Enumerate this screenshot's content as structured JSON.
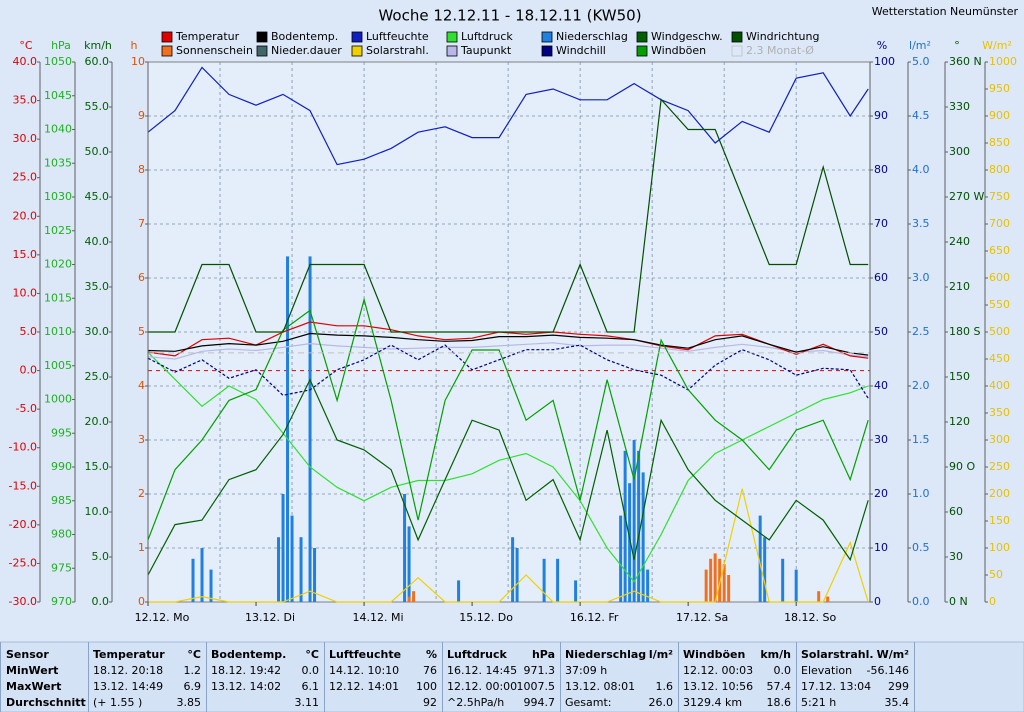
{
  "chart_data": {
    "type": "line",
    "title": "Woche 12.12.11 - 18.12.11 (KW50)",
    "station": "Wetterstation Neumünster",
    "xlim": [
      0,
      160.4
    ],
    "xticks": [
      {
        "value": 0,
        "label": "12.12. Mo"
      },
      {
        "value": 24,
        "label": "13.12. Di"
      },
      {
        "value": 48,
        "label": "14.12. Mi"
      },
      {
        "value": 72,
        "label": "15.12. Do"
      },
      {
        "value": 96,
        "label": "16.12. Fr"
      },
      {
        "value": 120,
        "label": "17.12. Sa"
      },
      {
        "value": 144,
        "label": "18.12. So"
      }
    ],
    "xgrid": [
      16,
      32,
      48,
      64,
      80,
      96,
      112,
      128,
      144
    ],
    "x": [
      0,
      6,
      12,
      18,
      24,
      30,
      36,
      42,
      48,
      54,
      60,
      66,
      72,
      78,
      84,
      90,
      96,
      102,
      108,
      114,
      120,
      126,
      132,
      138,
      144,
      150,
      156,
      160
    ],
    "axes": [
      {
        "unit": "°C",
        "side": "left",
        "color": "#e00000",
        "lim": [
          -30,
          40
        ],
        "reference": 0,
        "ticks": [
          {
            "value": 40,
            "label": "40.0"
          },
          {
            "value": 35,
            "label": "35.0"
          },
          {
            "value": 30,
            "label": "30.0"
          },
          {
            "value": 25,
            "label": "25.0"
          },
          {
            "value": 20,
            "label": "20.0"
          },
          {
            "value": 15,
            "label": "15.0"
          },
          {
            "value": 10,
            "label": "10.0"
          },
          {
            "value": 5,
            "label": "5.0"
          },
          {
            "value": 0,
            "label": "0.0"
          },
          {
            "value": -5,
            "label": "-5.0"
          },
          {
            "value": -10,
            "label": "-10.0"
          },
          {
            "value": -15,
            "label": "-15.0"
          },
          {
            "value": -20,
            "label": "-20.0"
          },
          {
            "value": -25,
            "label": "-25.0"
          },
          {
            "value": -30,
            "label": "-30.0"
          }
        ]
      },
      {
        "unit": "hPa",
        "side": "left",
        "color": "#20b020",
        "lim": [
          970,
          1050
        ],
        "ticks": [
          1050,
          1045,
          1040,
          1035,
          1030,
          1025,
          1020,
          1015,
          1010,
          1005,
          1000,
          995,
          990,
          985,
          980,
          975,
          970
        ]
      },
      {
        "unit": "km/h",
        "side": "left",
        "color": "#006000",
        "lim": [
          0,
          60
        ],
        "ticks": [
          {
            "value": 60,
            "label": "60.0"
          },
          {
            "value": 55,
            "label": "55.0"
          },
          {
            "value": 50,
            "label": "50.0"
          },
          {
            "value": 45,
            "label": "45.0"
          },
          {
            "value": 40,
            "label": "40.0"
          },
          {
            "value": 35,
            "label": "35.0"
          },
          {
            "value": 30,
            "label": "30.0"
          },
          {
            "value": 25,
            "label": "25.0"
          },
          {
            "value": 20,
            "label": "20.0"
          },
          {
            "value": 15,
            "label": "15.0"
          },
          {
            "value": 10,
            "label": "10.0"
          },
          {
            "value": 5,
            "label": "5.0"
          },
          {
            "value": 0,
            "label": "0.0"
          }
        ]
      },
      {
        "unit": "h",
        "side": "left",
        "color": "#e05000",
        "lim": [
          0,
          10
        ],
        "grid": true,
        "ticks": [
          10,
          9,
          8,
          7,
          6,
          5,
          4,
          3,
          2,
          1,
          0
        ]
      },
      {
        "unit": "%",
        "side": "right",
        "color": "#000090",
        "lim": [
          0,
          100
        ],
        "ticks": [
          100,
          90,
          80,
          70,
          60,
          50,
          40,
          30,
          20,
          10,
          0
        ]
      },
      {
        "unit": "l/m²",
        "side": "right",
        "color": "#1e70d0",
        "lim": [
          0,
          5
        ],
        "ticks": [
          {
            "value": 5,
            "label": "5.0"
          },
          {
            "value": 4.5,
            "label": "4.5"
          },
          {
            "value": 4,
            "label": "4.0"
          },
          {
            "value": 3.5,
            "label": "3.5"
          },
          {
            "value": 3,
            "label": "3.0"
          },
          {
            "value": 2.5,
            "label": "2.5"
          },
          {
            "value": 2,
            "label": "2.0"
          },
          {
            "value": 1.5,
            "label": "1.5"
          },
          {
            "value": 1,
            "label": "1.0"
          },
          {
            "value": 0.5,
            "label": "0.5"
          },
          {
            "value": 0,
            "label": "0.0"
          }
        ]
      },
      {
        "unit": "°",
        "side": "right",
        "color": "#005000",
        "lim": [
          0,
          360
        ],
        "ticks": [
          {
            "value": 360,
            "label": "360 N"
          },
          330,
          300,
          {
            "value": 270,
            "label": "270 W"
          },
          240,
          210,
          {
            "value": 180,
            "label": "180 S"
          },
          150,
          120,
          {
            "value": 90,
            "label": "90 O"
          },
          60,
          30,
          {
            "value": 0,
            "label": "0 N"
          }
        ]
      },
      {
        "unit": "W/m²",
        "side": "right",
        "color": "#e8c000",
        "lim": [
          0,
          1000
        ],
        "ticks": [
          1000,
          950,
          900,
          850,
          800,
          750,
          700,
          650,
          600,
          550,
          500,
          450,
          400,
          350,
          300,
          250,
          200,
          150,
          100,
          50,
          0
        ]
      }
    ],
    "series": [
      {
        "name": "Temperatur",
        "color": "#e00000",
        "axis": 0,
        "values": [
          2.4,
          1.9,
          4.0,
          4.2,
          3.3,
          5.0,
          6.3,
          5.8,
          5.8,
          5.3,
          4.5,
          4.0,
          4.2,
          5.0,
          4.7,
          5.0,
          4.7,
          4.5,
          4.0,
          3.2,
          2.7,
          4.5,
          4.7,
          3.4,
          2.1,
          3.4,
          1.9,
          1.6
        ]
      },
      {
        "name": "Sonnenschein",
        "color": "#f07020",
        "axis": 3,
        "style": "bar",
        "x": [
          58,
          59,
          124,
          125,
          126,
          127,
          128,
          129,
          149,
          151
        ],
        "values": [
          0.1,
          0.2,
          0.6,
          0.8,
          0.9,
          0.8,
          0.7,
          0.5,
          0.2,
          0.1
        ]
      },
      {
        "name": "Bodentemp.",
        "color": "#000000",
        "axis": 0,
        "values": [
          2.6,
          2.5,
          3.2,
          3.5,
          3.3,
          3.8,
          4.8,
          4.6,
          4.5,
          4.3,
          4.0,
          3.8,
          3.9,
          4.4,
          4.4,
          4.6,
          4.3,
          4.2,
          4.0,
          3.3,
          2.9,
          4.0,
          4.5,
          3.4,
          2.4,
          3.1,
          2.3,
          2.0
        ]
      },
      {
        "name": "Nieder.dauer",
        "color": "#406868",
        "axis": 3
      },
      {
        "name": "Luftfeuchte",
        "color": "#1020c0",
        "axis": 4,
        "values": [
          87,
          91,
          99,
          94,
          92,
          94,
          91,
          81,
          82,
          84,
          87,
          88,
          86,
          86,
          94,
          95,
          93,
          93,
          96,
          93,
          91,
          85,
          89,
          87,
          97,
          98,
          90,
          95
        ]
      },
      {
        "name": "Solarstrahl.",
        "color": "#f0d000",
        "axis": 7,
        "values": [
          0,
          0,
          10,
          0,
          0,
          0,
          20,
          0,
          0,
          0,
          45,
          0,
          0,
          0,
          50,
          0,
          0,
          0,
          20,
          0,
          0,
          0,
          210,
          0,
          0,
          0,
          110,
          0
        ]
      },
      {
        "name": "Luftdruck",
        "color": "#30e030",
        "axis": 1,
        "values": [
          1007,
          1003,
          999,
          1002,
          1000,
          995,
          990,
          987,
          985,
          987,
          988,
          988,
          989,
          991,
          992,
          990,
          985,
          978,
          973,
          980,
          988,
          992,
          994,
          996,
          998,
          1000,
          1001,
          1002
        ]
      },
      {
        "name": "Taupunkt",
        "color": "#b8b8e8",
        "axis": 0,
        "values": [
          1.8,
          1.5,
          2.5,
          2.8,
          2.6,
          3.0,
          3.5,
          3.2,
          3.0,
          2.8,
          2.9,
          3.0,
          3.0,
          3.2,
          3.4,
          3.6,
          3.2,
          3.3,
          3.3,
          2.9,
          2.5,
          3.0,
          3.4,
          3.0,
          2.4,
          2.6,
          2.0,
          1.8
        ]
      },
      {
        "name": "Niederschlag",
        "color": "#2080e0",
        "axis": 5,
        "style": "bar",
        "x": [
          10,
          12,
          14,
          29,
          30,
          31,
          32,
          34,
          36,
          37,
          57,
          58,
          69,
          81,
          82,
          88,
          91,
          95,
          105,
          106,
          107,
          108,
          109,
          110,
          111,
          136,
          137,
          141,
          144
        ],
        "values": [
          0.4,
          0.5,
          0.3,
          0.6,
          1.0,
          3.2,
          0.8,
          0.6,
          3.2,
          0.5,
          1.0,
          0.7,
          0.2,
          0.6,
          0.5,
          0.4,
          0.4,
          0.2,
          0.8,
          1.4,
          1.1,
          1.5,
          1.4,
          1.2,
          0.3,
          0.8,
          0.6,
          0.4,
          0.3
        ]
      },
      {
        "name": "Windchill",
        "color": "#000080",
        "axis": 0,
        "style": "dashed",
        "values": [
          1.6,
          -0.2,
          1.4,
          -1.0,
          0.1,
          -3.2,
          -2.5,
          0.1,
          1.4,
          3.3,
          1.4,
          3.3,
          0.1,
          1.4,
          2.7,
          2.7,
          3.3,
          1.4,
          0.1,
          -0.6,
          -2.5,
          0.7,
          2.7,
          1.4,
          -0.6,
          0.3,
          0.1,
          -3.6
        ]
      },
      {
        "name": "Windgeschw.",
        "color": "#006000",
        "axis": 2,
        "values": [
          3.0,
          8.6,
          9.1,
          13.6,
          14.7,
          18.6,
          24.7,
          18.0,
          16.9,
          14.7,
          6.9,
          13.6,
          20.2,
          19.1,
          11.3,
          13.6,
          6.9,
          19.1,
          4.7,
          20.2,
          14.7,
          11.3,
          9.1,
          6.9,
          11.3,
          9.1,
          4.7,
          11.3
        ]
      },
      {
        "name": "Windböen",
        "color": "#00a000",
        "axis": 2,
        "values": [
          6.9,
          14.7,
          18.0,
          22.4,
          23.6,
          30.2,
          32.4,
          22.4,
          33.6,
          22.4,
          9.1,
          22.4,
          28.0,
          28.0,
          20.2,
          22.4,
          11.3,
          24.7,
          13.6,
          29.1,
          23.6,
          20.2,
          18.0,
          14.7,
          19.1,
          20.2,
          13.6,
          20.2
        ]
      },
      {
        "name": "Windrichtung",
        "color": "#005000",
        "axis": 6,
        "values": [
          180,
          180,
          225,
          225,
          180,
          180,
          225,
          225,
          225,
          180,
          180,
          180,
          180,
          180,
          180,
          180,
          225,
          180,
          180,
          335,
          315,
          315,
          270,
          225,
          225,
          290,
          225,
          225
        ]
      },
      {
        "name": "2.3 Monat-Ø",
        "color": "#c0c0c0",
        "axis": 0,
        "disabled": true,
        "level": 2.3
      }
    ]
  },
  "table": {
    "first_header": "Sensor",
    "columns": [
      {
        "title": "Temperatur",
        "unit": "°C"
      },
      {
        "title": "Bodentemp.",
        "unit": "°C"
      },
      {
        "title": "Luftfeuchte",
        "unit": "%"
      },
      {
        "title": "Luftdruck",
        "unit": "hPa"
      },
      {
        "title": "Niederschlag",
        "unit": "l/m²"
      },
      {
        "title": "Windböen",
        "unit": "km/h"
      },
      {
        "title": "Solarstrahl.",
        "unit": "W/m²"
      }
    ],
    "row_labels": [
      "MinWert",
      "MaxWert",
      "Durchschnitt"
    ],
    "rows": [
      [
        {
          "left": "18.12.  20:18",
          "right": "1.2"
        },
        {
          "left": "18.12.  19:42",
          "right": "0.0"
        },
        {
          "left": "14.12.  10:10",
          "right": "76"
        },
        {
          "left": "16.12.  14:45",
          "right": "971.3"
        },
        {
          "left": "37:09 h"
        },
        {
          "left": "12.12.  00:03",
          "right": "0.0"
        },
        {
          "left": "Elevation",
          "right": "-56.146"
        }
      ],
      [
        {
          "left": "13.12.  14:49",
          "right": "6.9"
        },
        {
          "left": "13.12.  14:02",
          "right": "6.1"
        },
        {
          "left": "12.12.  14:01",
          "right": "100"
        },
        {
          "left": "12.12.  00:00",
          "right": "1007.5"
        },
        {
          "left": "13.12.  08:01",
          "right": "1.6"
        },
        {
          "left": "13.12.  10:56",
          "right": "57.4"
        },
        {
          "left": "17.12.  13:04",
          "right": "299"
        }
      ],
      [
        {
          "left": "(+ 1.55 )",
          "right": "3.85"
        },
        {
          "right": "3.11"
        },
        {
          "right": "92"
        },
        {
          "left": "^2.5hPa/h",
          "right": "994.7"
        },
        {
          "left": "Gesamt:",
          "right": "26.0"
        },
        {
          "left": "3129.4 km",
          "right": "18.6"
        },
        {
          "left": "5:21 h",
          "right": "35.4"
        }
      ]
    ]
  }
}
